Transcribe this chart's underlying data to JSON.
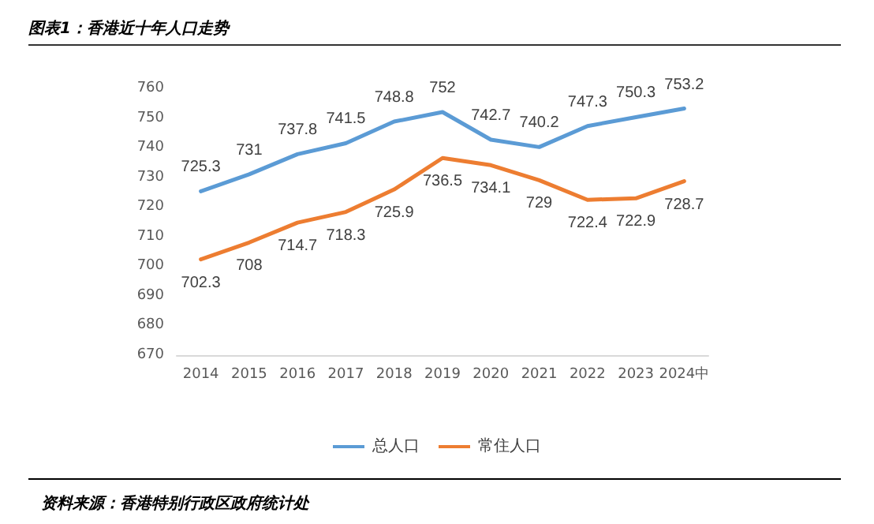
{
  "chart_data": {
    "type": "line",
    "title": "图表1：香港近十年人口走势",
    "categories": [
      "2014",
      "2015",
      "2016",
      "2017",
      "2018",
      "2019",
      "2020",
      "2021",
      "2022",
      "2023",
      "2024中"
    ],
    "series": [
      {
        "name": "总人口",
        "color": "#5b9bd5",
        "values": [
          725.3,
          731,
          737.8,
          741.5,
          748.8,
          752,
          742.7,
          740.2,
          747.3,
          750.3,
          753.2
        ]
      },
      {
        "name": "常住人口",
        "color": "#ed7d31",
        "values": [
          702.3,
          708,
          714.7,
          718.3,
          725.9,
          736.5,
          734.1,
          729,
          722.4,
          722.9,
          728.7
        ]
      }
    ],
    "ylim": [
      670,
      760
    ],
    "yticks": [
      670,
      680,
      690,
      700,
      710,
      720,
      730,
      740,
      750,
      760
    ],
    "grid": false,
    "legend": "bottom",
    "data_labels": true,
    "marker": "none",
    "line_style": "solid",
    "annotations": [
      "资料来源：香港特别行政区政府统计处"
    ]
  }
}
